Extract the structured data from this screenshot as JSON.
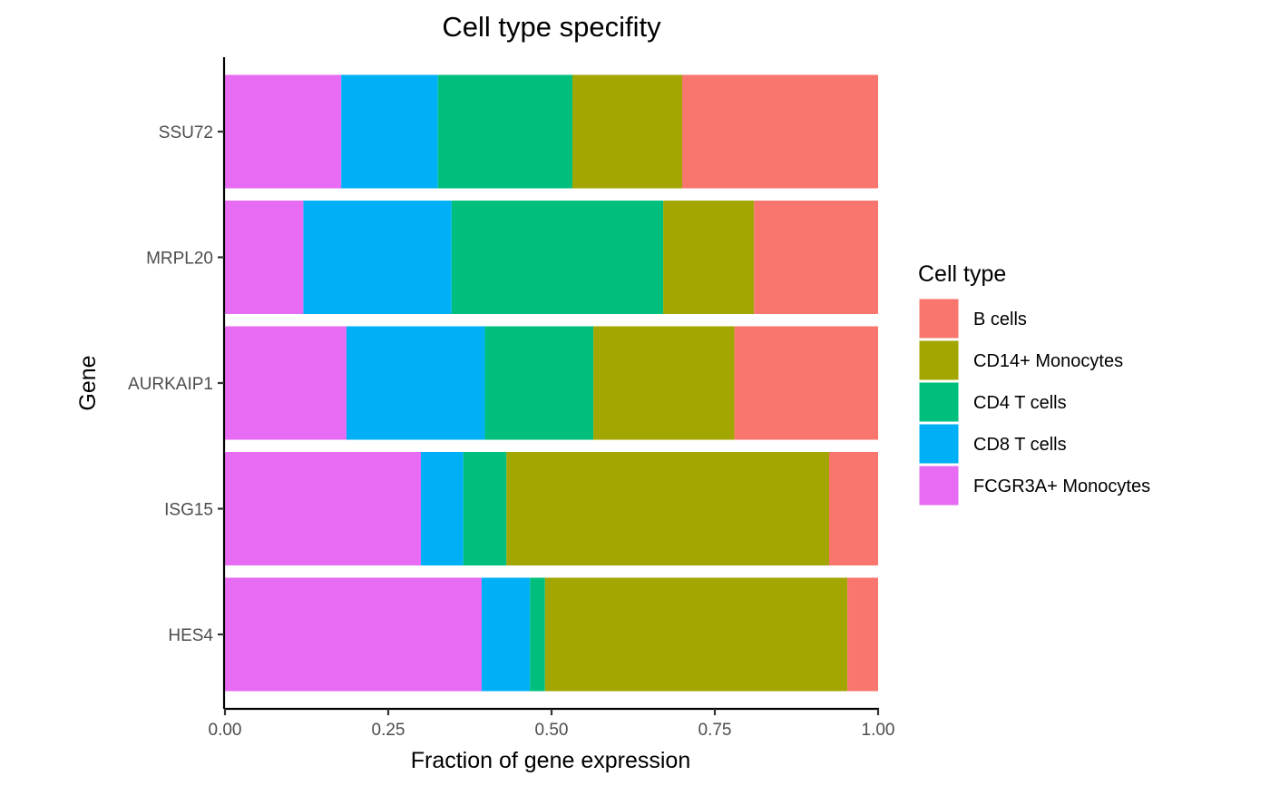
{
  "chart_data": {
    "type": "bar",
    "orientation": "horizontal",
    "stacked": true,
    "title": "Cell type specifity",
    "xlabel": "Fraction of gene expression",
    "ylabel": "Gene",
    "xlim": [
      0,
      1
    ],
    "x_ticks": [
      "0.00",
      "0.25",
      "0.50",
      "0.75",
      "1.00"
    ],
    "x_tick_values": [
      0,
      0.25,
      0.5,
      0.75,
      1.0
    ],
    "categories": [
      "SSU72",
      "MRPL20",
      "AURKAIP1",
      "ISG15",
      "HES4"
    ],
    "grid": false,
    "legend": {
      "title": "Cell type",
      "position": "right",
      "entries": [
        "B cells",
        "CD14+ Monocytes",
        "CD4 T cells",
        "CD8 T cells",
        "FCGR3A+ Monocytes"
      ]
    },
    "stack_order": [
      "FCGR3A+ Monocytes",
      "CD8 T cells",
      "CD4 T cells",
      "CD14+ Monocytes",
      "B cells"
    ],
    "series": [
      {
        "name": "B cells",
        "color": "#F8766D",
        "values": [
          0.3,
          0.19,
          0.22,
          0.075,
          0.047
        ]
      },
      {
        "name": "CD14+ Monocytes",
        "color": "#A3A500",
        "values": [
          0.168,
          0.139,
          0.216,
          0.494,
          0.463
        ]
      },
      {
        "name": "CD4 T cells",
        "color": "#00BF7D",
        "values": [
          0.206,
          0.324,
          0.166,
          0.066,
          0.023
        ]
      },
      {
        "name": "CD8 T cells",
        "color": "#00B0F6",
        "values": [
          0.148,
          0.227,
          0.212,
          0.065,
          0.074
        ]
      },
      {
        "name": "FCGR3A+ Monocytes",
        "color": "#E76BF3",
        "values": [
          0.178,
          0.12,
          0.186,
          0.3,
          0.393
        ]
      }
    ]
  }
}
